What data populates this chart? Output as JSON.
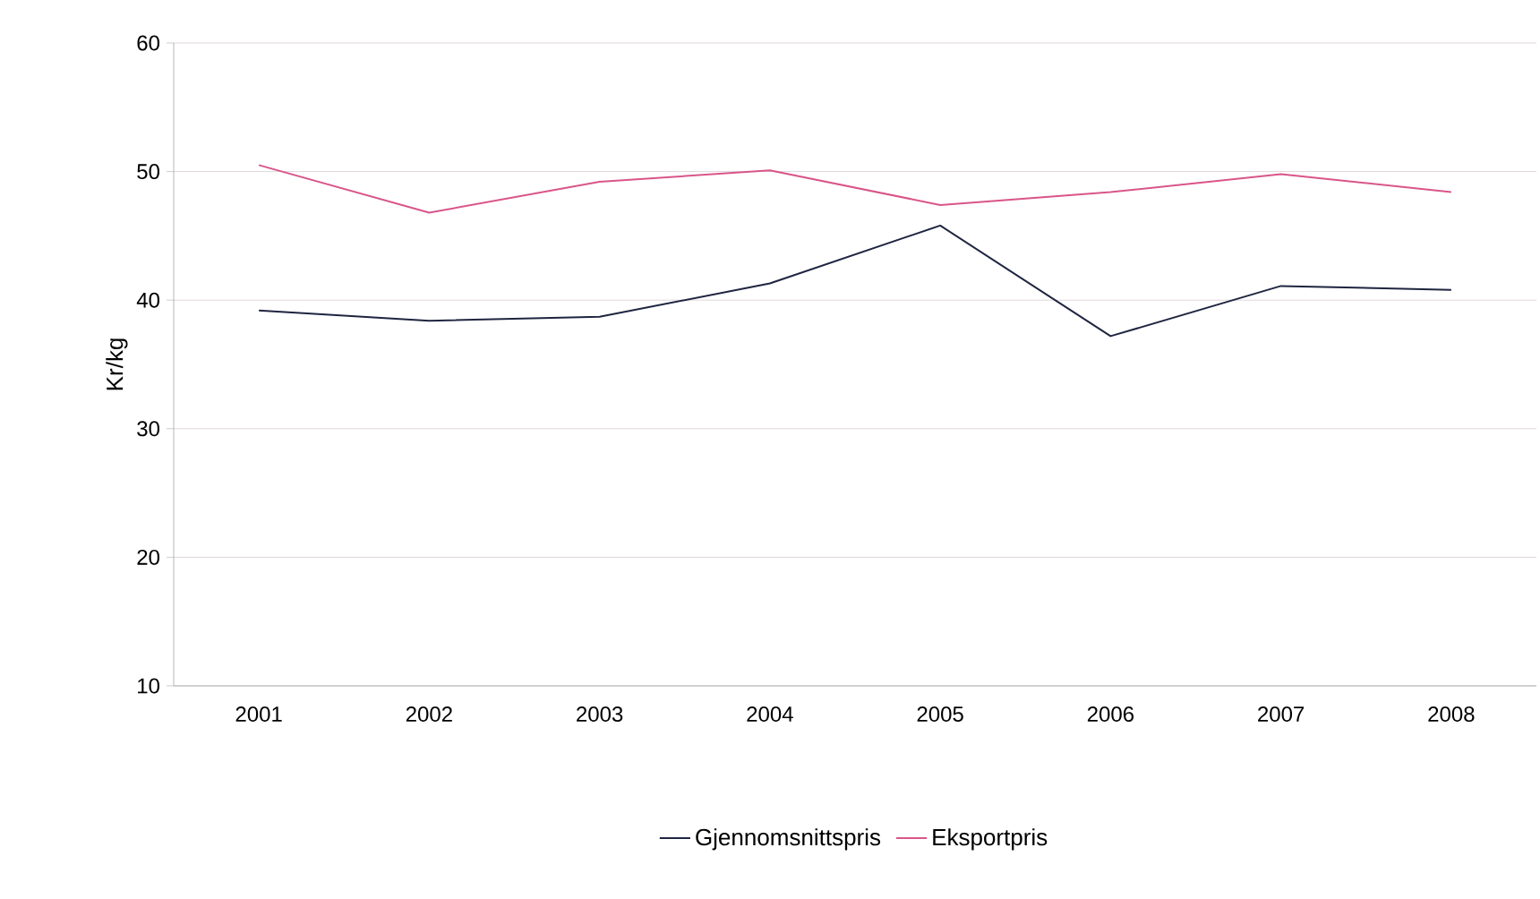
{
  "chart_data": {
    "type": "line",
    "ylabel": "Kr/kg",
    "categories": [
      "2001",
      "2002",
      "2003",
      "2004",
      "2005",
      "2006",
      "2007",
      "2008"
    ],
    "series": [
      {
        "name": "Gjennomsnittspris",
        "color": "#1f2540",
        "values": [
          39.2,
          38.4,
          38.7,
          41.3,
          45.8,
          37.2,
          41.1,
          40.8
        ]
      },
      {
        "name": "Eksportpris",
        "color": "#d9558a",
        "values": [
          50.5,
          46.8,
          49.2,
          50.1,
          47.4,
          48.4,
          49.8,
          48.4
        ]
      }
    ],
    "ylim": [
      10,
      60
    ],
    "yticks": [
      10,
      20,
      30,
      40,
      50,
      60
    ],
    "grid": "y",
    "legend": "bottom",
    "marker": "none",
    "line_style": "solid"
  }
}
